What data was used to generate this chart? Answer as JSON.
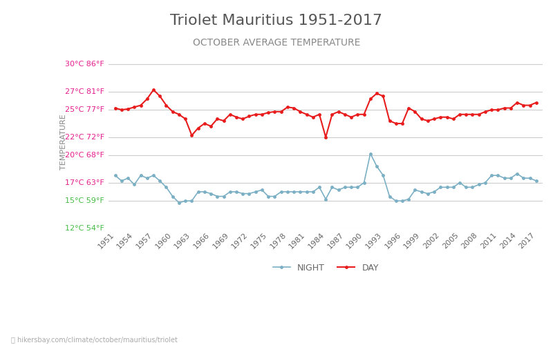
{
  "title": "Triolet Mauritius 1951-2017",
  "subtitle": "OCTOBER AVERAGE TEMPERATURE",
  "ylabel": "TEMPERATURE",
  "footer": "hikersbay.com/climate/october/mauritius/triolet",
  "years": [
    1951,
    1952,
    1953,
    1954,
    1955,
    1956,
    1957,
    1958,
    1959,
    1960,
    1961,
    1962,
    1963,
    1964,
    1965,
    1966,
    1967,
    1968,
    1969,
    1970,
    1971,
    1972,
    1973,
    1974,
    1975,
    1976,
    1977,
    1978,
    1979,
    1980,
    1981,
    1982,
    1983,
    1984,
    1985,
    1986,
    1987,
    1988,
    1989,
    1990,
    1991,
    1992,
    1993,
    1994,
    1995,
    1996,
    1997,
    1998,
    1999,
    2000,
    2001,
    2002,
    2003,
    2004,
    2005,
    2006,
    2007,
    2008,
    2009,
    2010,
    2011,
    2012,
    2013,
    2014,
    2015,
    2016,
    2017
  ],
  "day_temps": [
    25.2,
    25.0,
    25.1,
    25.3,
    25.5,
    26.2,
    27.2,
    26.5,
    25.5,
    24.8,
    24.5,
    24.0,
    22.2,
    23.0,
    23.5,
    23.2,
    24.0,
    23.8,
    24.5,
    24.2,
    24.0,
    24.3,
    24.5,
    24.5,
    24.7,
    24.8,
    24.8,
    25.3,
    25.2,
    24.8,
    24.5,
    24.2,
    24.5,
    22.0,
    24.5,
    24.8,
    24.5,
    24.2,
    24.5,
    24.5,
    26.2,
    26.8,
    26.5,
    23.8,
    23.5,
    23.5,
    25.2,
    24.8,
    24.0,
    23.8,
    24.0,
    24.2,
    24.2,
    24.0,
    24.5,
    24.5,
    24.5,
    24.5,
    24.8,
    25.0,
    25.0,
    25.2,
    25.2,
    25.8,
    25.5,
    25.5,
    25.8
  ],
  "night_temps": [
    17.8,
    17.2,
    17.5,
    16.8,
    17.8,
    17.5,
    17.8,
    17.2,
    16.5,
    15.5,
    14.8,
    15.0,
    15.0,
    16.0,
    16.0,
    15.8,
    15.5,
    15.5,
    16.0,
    16.0,
    15.8,
    15.8,
    16.0,
    16.2,
    15.5,
    15.5,
    16.0,
    16.0,
    16.0,
    16.0,
    16.0,
    16.0,
    16.5,
    15.2,
    16.5,
    16.2,
    16.5,
    16.5,
    16.5,
    17.0,
    20.2,
    18.8,
    17.8,
    15.5,
    15.0,
    15.0,
    15.2,
    16.2,
    16.0,
    15.8,
    16.0,
    16.5,
    16.5,
    16.5,
    17.0,
    16.5,
    16.5,
    16.8,
    17.0,
    17.8,
    17.8,
    17.5,
    17.5,
    18.0,
    17.5,
    17.5,
    17.2
  ],
  "day_color": "#e81c1c",
  "night_color": "#7bafc4",
  "title_color": "#555555",
  "subtitle_color": "#888888",
  "ylabel_color": "#888888",
  "ytick_color_magenta": "#e61c8c",
  "ytick_color_green": "#44bb44",
  "background_color": "#ffffff",
  "grid_color": "#cccccc",
  "ylim": [
    12,
    31
  ],
  "yticks_c": [
    12,
    15,
    17,
    20,
    22,
    25,
    27,
    30
  ],
  "yticks_f": [
    54,
    59,
    63,
    68,
    72,
    77,
    81,
    86
  ],
  "xtick_years": [
    1951,
    1954,
    1957,
    1960,
    1963,
    1966,
    1969,
    1972,
    1975,
    1978,
    1981,
    1984,
    1987,
    1990,
    1993,
    1996,
    1999,
    2002,
    2005,
    2008,
    2011,
    2014,
    2017
  ],
  "legend_night_label": "NIGHT",
  "legend_day_label": "DAY",
  "title_fontsize": 16,
  "subtitle_fontsize": 10,
  "ylabel_fontsize": 8,
  "tick_fontsize": 8,
  "legend_fontsize": 9,
  "green_vals": [
    12,
    15
  ],
  "footer_text": "hikersbay.com/climate/october/mauritius/triolet"
}
